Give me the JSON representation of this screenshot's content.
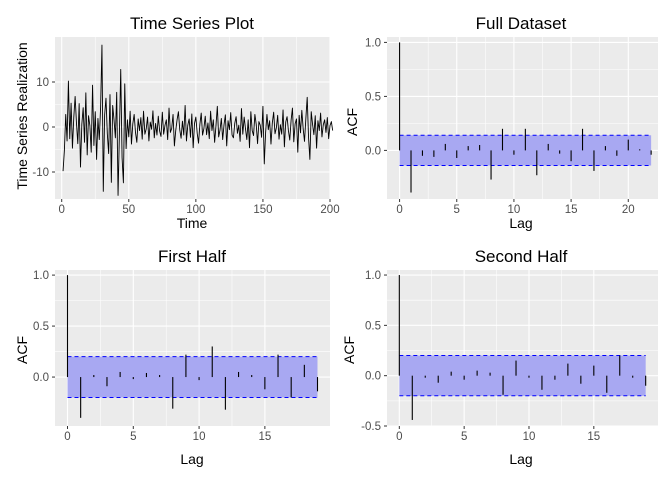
{
  "colors": {
    "panel_background": "#ebebeb",
    "grid": "#ffffff",
    "line": "#000000",
    "confidence_band": "#a8a8f2",
    "confidence_bound": "#0000ff"
  },
  "chart_data": [
    {
      "id": "ts",
      "type": "line",
      "title": "Time Series Plot",
      "xlabel": "Time",
      "ylabel": "Time Series Realization",
      "xlim": [
        -5,
        200
      ],
      "ylim": [
        -16,
        20
      ],
      "xticks": [
        0,
        50,
        100,
        150,
        200
      ],
      "xtick_labels": [
        "0",
        "50",
        "100",
        "150",
        "200"
      ],
      "yticks": [
        -10,
        0,
        10
      ],
      "ytick_labels": [
        "-10",
        "0",
        "10"
      ],
      "grid": true,
      "values": [
        -9.8,
        -5.2,
        2.8,
        -3.1,
        10.2,
        -2.6,
        5.3,
        -4.7,
        2.1,
        6.8,
        0.9,
        -3.7,
        5.2,
        -8.9,
        0.6,
        4.3,
        -3.4,
        7.6,
        -6.2,
        2.5,
        0.3,
        -5.6,
        9.3,
        -4.1,
        3.4,
        -7.2,
        1.9,
        -2.8,
        4.4,
        18.2,
        -14.3,
        2.7,
        6.4,
        -1.5,
        -5.9,
        7.2,
        -12.3,
        4.8,
        1.6,
        -2.4,
        7.7,
        -15.2,
        -1.6,
        12.8,
        -6.8,
        -12.4,
        9.6,
        -4.8,
        1.6,
        -2.2,
        3.5,
        -3.8,
        0.7,
        2.8,
        -1.2,
        -3.4,
        1.8,
        -0.8,
        2.1,
        -2.7,
        3.5,
        -1.6,
        -0.4,
        2.2,
        -3.1,
        1.1,
        -0.5,
        3.6,
        -2.4,
        0.8,
        -1.8,
        2.4,
        -0.9,
        -2.1,
        3.3,
        -1.6,
        0.4,
        1.6,
        -2.8,
        4.2,
        -1.2,
        -0.3,
        2.8,
        -4.2,
        -0.8,
        1.6,
        3.4,
        -0.6,
        -2.5,
        1.3,
        -1.8,
        4.8,
        -3.1,
        0.4,
        1.8,
        -2.3,
        2.9,
        -4.6,
        0.8,
        2.2,
        -1.4,
        -3.6,
        0.6,
        3.1,
        -1.8,
        -0.3,
        2.4,
        -1.7,
        0.9,
        -2.6,
        3.5,
        -0.8,
        1.6,
        -3.4,
        0.3,
        4.6,
        -2.2,
        -0.7,
        1.9,
        -2.8,
        0.5,
        2.7,
        -4.2,
        1.4,
        -0.6,
        3.2,
        -1.8,
        -2.4,
        0.8,
        2.3,
        -1.4,
        0.4,
        -3.2,
        4.1,
        -1.6,
        2.2,
        -0.4,
        -2.8,
        1.6,
        -4.6,
        3.4,
        -0.8,
        -1.9,
        2.8,
        0.6,
        -3.7,
        1.2,
        0.4,
        -2.3,
        4.6,
        -8.2,
        -1.2,
        2.8,
        -0.6,
        1.4,
        -3.8,
        0.9,
        3.3,
        -1.5,
        -0.2,
        2.6,
        -2.7,
        0.5,
        -1.6,
        3.8,
        -4.4,
        1.1,
        2.3,
        -0.8,
        -2.9,
        1.5,
        4.2,
        -3.3,
        0.7,
        1.8,
        -5.6,
        2.6,
        -1.3,
        3.7,
        -0.4,
        -3.2,
        1.9,
        6.6,
        -2.3,
        -7.2,
        3.4,
        0.6,
        -1.7,
        2.5,
        -4.7,
        1.4,
        -0.8,
        3.1,
        -2.2,
        0.5,
        1.6,
        -1.2,
        2.1,
        -2.6,
        0.3,
        1.2,
        -0.8
      ]
    },
    {
      "id": "acf_full",
      "type": "bar",
      "title": "Full Dataset",
      "xlabel": "Lag",
      "ylabel": "ACF",
      "xlim": [
        -1.1,
        22.6
      ],
      "ylim": [
        -0.45,
        1.05
      ],
      "xticks": [
        0,
        5,
        10,
        15,
        20
      ],
      "xtick_labels": [
        "0",
        "5",
        "10",
        "15",
        "20"
      ],
      "yticks": [
        0.0,
        0.5,
        1.0
      ],
      "ytick_labels": [
        "0.0",
        "0.5",
        "1.0"
      ],
      "grid": true,
      "confidence_bound": 0.14,
      "band_x": [
        0,
        22
      ],
      "lags": [
        0,
        1,
        2,
        3,
        4,
        5,
        6,
        7,
        8,
        9,
        10,
        11,
        12,
        13,
        14,
        15,
        16,
        17,
        18,
        19,
        20,
        21,
        22
      ],
      "values": [
        1.0,
        -0.39,
        -0.05,
        -0.06,
        0.06,
        -0.07,
        0.04,
        0.05,
        -0.27,
        0.2,
        -0.04,
        0.2,
        -0.23,
        0.06,
        -0.03,
        -0.1,
        0.2,
        -0.19,
        0.04,
        -0.05,
        0.1,
        0.01,
        -0.04
      ]
    },
    {
      "id": "acf_first",
      "type": "bar",
      "title": "First Half",
      "xlabel": "Lag",
      "ylabel": "ACF",
      "xlim": [
        -0.95,
        19.95
      ],
      "ylim": [
        -0.48,
        1.05
      ],
      "xticks": [
        0,
        5,
        10,
        15
      ],
      "xtick_labels": [
        "0",
        "5",
        "10",
        "15"
      ],
      "yticks": [
        0.0,
        0.5,
        1.0
      ],
      "ytick_labels": [
        "0.0",
        "0.5",
        "1.0"
      ],
      "grid": true,
      "confidence_bound": 0.2,
      "band_x": [
        0,
        19
      ],
      "lags": [
        0,
        1,
        2,
        3,
        4,
        5,
        6,
        7,
        8,
        9,
        10,
        11,
        12,
        13,
        14,
        15,
        16,
        17,
        18,
        19
      ],
      "values": [
        1.0,
        -0.4,
        0.02,
        -0.09,
        0.05,
        -0.02,
        0.04,
        0.02,
        -0.31,
        0.22,
        -0.03,
        0.3,
        -0.32,
        0.05,
        0.02,
        -0.12,
        0.22,
        -0.2,
        0.12,
        -0.14
      ]
    },
    {
      "id": "acf_second",
      "type": "bar",
      "title": "Second Half",
      "xlabel": "Lag",
      "ylabel": "ACF",
      "xlim": [
        -0.95,
        19.95
      ],
      "ylim": [
        -0.5,
        1.05
      ],
      "xticks": [
        0,
        5,
        10,
        15
      ],
      "xtick_labels": [
        "0",
        "5",
        "10",
        "15"
      ],
      "yticks": [
        -0.5,
        0.0,
        0.5,
        1.0
      ],
      "ytick_labels": [
        "-0.5",
        "0.0",
        "0.5",
        "1.0"
      ],
      "grid": true,
      "confidence_bound": 0.2,
      "band_x": [
        0,
        19
      ],
      "lags": [
        0,
        1,
        2,
        3,
        4,
        5,
        6,
        7,
        8,
        9,
        10,
        11,
        12,
        13,
        14,
        15,
        16,
        17,
        18,
        19
      ],
      "values": [
        1.0,
        -0.44,
        -0.02,
        -0.07,
        0.04,
        -0.04,
        0.05,
        0.03,
        -0.19,
        0.15,
        -0.02,
        -0.14,
        -0.04,
        0.12,
        -0.08,
        0.1,
        -0.17,
        0.2,
        -0.02,
        -0.1
      ]
    }
  ]
}
